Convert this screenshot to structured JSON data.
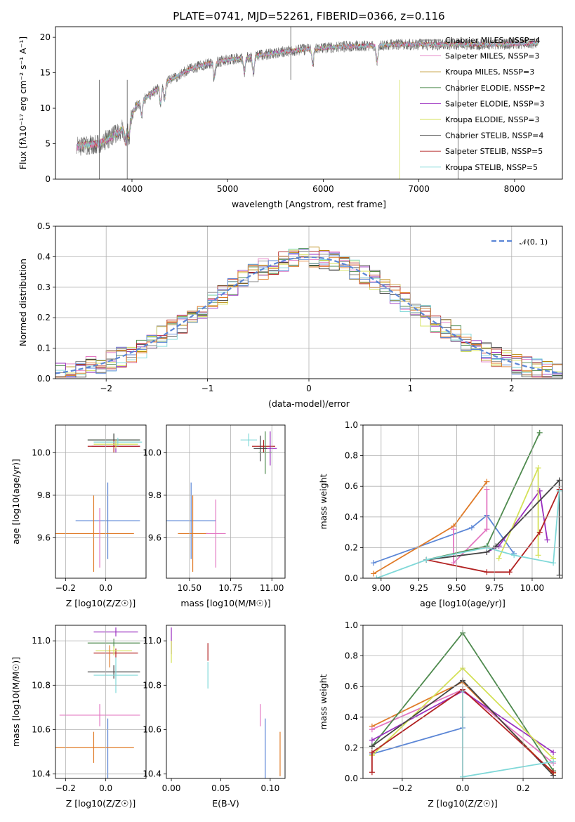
{
  "title": "PLATE=0741, MJD=52261, FIBERID=0366, z=0.116",
  "colors": {
    "chabrier_miles": "#808080",
    "salpeter_miles": "#e377c2",
    "kroupa_miles": "#b8860b",
    "chabrier_elodie": "#4e8a4e",
    "salpeter_elodie": "#9b30c0",
    "kroupa_elodie": "#d4e157",
    "chabrier_stelib": "#444444",
    "salpeter_stelib": "#b22222",
    "kroupa_stelib": "#7fd8d8",
    "blue": "#5b86d6",
    "orange": "#e07b28",
    "pink": "#e377c2",
    "grid": "#b0b0b0"
  },
  "chart_data": [
    {
      "type": "line",
      "panel": "spectrum",
      "xlabel": "wavelength [Angstrom, rest frame]",
      "ylabel": "Flux [f$_\\lambda$10$^{-17}$ erg cm$^{-2}$ s$^{-1}$ A$^{-1}$]",
      "ylabel_display": "Flux [fλ10⁻¹⁷ erg cm⁻² s⁻¹ A⁻¹]",
      "xlim": [
        3200,
        8500
      ],
      "ylim": [
        0,
        21.5
      ],
      "xticks": [
        "4000",
        "5000",
        "6000",
        "7000",
        "8000"
      ],
      "yticks": [
        "0",
        "5",
        "10",
        "15",
        "20"
      ],
      "legend_position": "right",
      "legend": [
        "Chabrier MILES, N_SSP=4",
        "Salpeter MILES, N_SSP=3",
        "Kroupa MILES, N_SSP=3",
        "Chabrier ELODIE, N_SSP=2",
        "Salpeter ELODIE, N_SSP=3",
        "Kroupa ELODIE, N_SSP=3",
        "Chabrier STELIB, N_SSP=4",
        "Salpeter STELIB, N_SSP=5",
        "Kroupa STELIB, N_SSP=5"
      ],
      "legend_display": [
        "Chabrier MILES, NSSP=4",
        "Salpeter MILES, NSSP=3",
        "Kroupa MILES, NSSP=3",
        "Chabrier ELODIE, NSSP=2",
        "Salpeter ELODIE, NSSP=3",
        "Kroupa ELODIE, NSSP=3",
        "Chabrier STELIB, NSSP=4",
        "Salpeter STELIB, NSSP=5",
        "Kroupa STELIB, NSSP=5"
      ],
      "continuum": {
        "x": [
          3420,
          3500,
          3650,
          3800,
          3950,
          4050,
          4200,
          4400,
          4600,
          4800,
          5000,
          5200,
          5400,
          5600,
          5800,
          6000,
          6200,
          6400,
          6600,
          6800,
          7000,
          7200,
          7500,
          7800,
          8000,
          8250
        ],
        "y": [
          4.5,
          4.8,
          5.0,
          6.0,
          7.5,
          10.5,
          12.0,
          14.0,
          15.5,
          16.3,
          16.8,
          17.2,
          17.6,
          18.0,
          18.3,
          18.5,
          18.7,
          18.8,
          18.9,
          19.0,
          19.0,
          19.0,
          19.0,
          19.0,
          19.1,
          19.2
        ]
      }
    },
    {
      "type": "line",
      "panel": "residual histogram",
      "xlabel": "(data-model)/error",
      "ylabel": "Normed distribution",
      "xlim": [
        -2.5,
        2.5
      ],
      "ylim": [
        0,
        0.5
      ],
      "xticks": [
        "−2",
        "−1",
        "0",
        "1",
        "2"
      ],
      "yticks": [
        "0.0",
        "0.1",
        "0.2",
        "0.3",
        "0.4",
        "0.5"
      ],
      "legend": [
        "𝒩(0, 1)"
      ],
      "legend_position": "top-right",
      "grid": true,
      "bin_width": 0.1,
      "reference": {
        "name": "𝒩(0, 1)",
        "mean": 0,
        "sigma": 1
      }
    },
    {
      "type": "scatter",
      "panel": "Z vs age",
      "xlabel": "Z [log10(Z/Z☉)]",
      "ylabel": "age [log10(age/yr)]",
      "xlim": [
        -0.25,
        0.2
      ],
      "ylim": [
        9.41,
        10.13
      ],
      "xticks": [
        "−0.2",
        "0.0"
      ],
      "yticks": [
        "9.6",
        "9.8",
        "10.0"
      ],
      "grid": true,
      "points": [
        {
          "x": 0.01,
          "y": 9.68,
          "xerr": 0.16,
          "yerr": 0.18,
          "color": "blue"
        },
        {
          "x": -0.06,
          "y": 9.62,
          "xerr": 0.2,
          "yerr": 0.18,
          "color": "orange"
        },
        {
          "x": -0.03,
          "y": 9.6,
          "xerr": 0.0,
          "yerr": 0.14,
          "color": "pink"
        },
        {
          "x": 0.04,
          "y": 10.06,
          "xerr": 0.13,
          "yerr": 0.03,
          "color": "chabrier_elodie"
        },
        {
          "x": 0.04,
          "y": 10.06,
          "xerr": 0.13,
          "yerr": 0.03,
          "color": "chabrier_stelib"
        },
        {
          "x": 0.05,
          "y": 10.03,
          "xerr": 0.12,
          "yerr": 0.03,
          "color": "salpeter_elodie"
        },
        {
          "x": 0.04,
          "y": 10.03,
          "xerr": 0.13,
          "yerr": 0.03,
          "color": "salpeter_stelib"
        },
        {
          "x": 0.06,
          "y": 10.05,
          "xerr": 0.12,
          "yerr": 0.02,
          "color": "kroupa_stelib"
        },
        {
          "x": 0.05,
          "y": 10.04,
          "xerr": 0.11,
          "yerr": 0.02,
          "color": "kroupa_elodie"
        }
      ]
    },
    {
      "type": "scatter",
      "panel": "mass vs age",
      "xlabel": "mass [log10(M/M☉)]",
      "ylabel": "",
      "xlim": [
        10.36,
        11.08
      ],
      "ylim": [
        9.41,
        10.13
      ],
      "xticks": [
        "10.50",
        "10.75",
        "11.00"
      ],
      "yticks": [
        "9.6",
        "9.8",
        "10.0"
      ],
      "grid": true,
      "points": [
        {
          "x": 10.51,
          "y": 9.68,
          "xerr": 0.15,
          "yerr": 0.18,
          "color": "blue"
        },
        {
          "x": 10.52,
          "y": 9.62,
          "xerr": 0.09,
          "yerr": 0.18,
          "color": "orange"
        },
        {
          "x": 10.66,
          "y": 9.62,
          "xerr": 0.06,
          "yerr": 0.16,
          "color": "pink"
        },
        {
          "x": 10.86,
          "y": 10.06,
          "xerr": 0.05,
          "yerr": 0.03,
          "color": "kroupa_stelib"
        },
        {
          "x": 10.95,
          "y": 10.03,
          "xerr": 0.07,
          "yerr": 0.03,
          "color": "salpeter_stelib"
        },
        {
          "x": 10.99,
          "y": 10.02,
          "xerr": 0.04,
          "yerr": 0.08,
          "color": "salpeter_elodie"
        },
        {
          "x": 10.96,
          "y": 10.0,
          "xerr": 0.04,
          "yerr": 0.1,
          "color": "chabrier_elodie"
        },
        {
          "x": 10.93,
          "y": 10.02,
          "xerr": 0.04,
          "yerr": 0.06,
          "color": "chabrier_stelib"
        }
      ]
    },
    {
      "type": "line",
      "panel": "age vs mass weight",
      "xlabel": "age [log10(age/yr)]",
      "ylabel": "mass weight",
      "xlim": [
        8.88,
        10.2
      ],
      "ylim": [
        0,
        1
      ],
      "xticks": [
        "9.00",
        "9.25",
        "9.50",
        "9.75",
        "10.00"
      ],
      "yticks": [
        "0.0",
        "0.2",
        "0.4",
        "0.6",
        "0.8",
        "1.0"
      ],
      "grid": true,
      "series": [
        {
          "color": "blue",
          "x": [
            8.95,
            9.6,
            9.7,
            9.88
          ],
          "y": [
            0.1,
            0.33,
            0.41,
            0.16
          ]
        },
        {
          "color": "orange",
          "x": [
            8.95,
            9.48,
            9.7
          ],
          "y": [
            0.03,
            0.34,
            0.63
          ]
        },
        {
          "color": "pink",
          "x": [
            9.48,
            9.48,
            9.7,
            9.7
          ],
          "y": [
            0.32,
            0.1,
            0.32,
            0.58
          ]
        },
        {
          "color": "chabrier_elodie",
          "x": [
            9.3,
            9.7,
            10.05
          ],
          "y": [
            0.12,
            0.21,
            0.95
          ]
        },
        {
          "color": "salpeter_elodie",
          "x": [
            9.7,
            9.78,
            10.05,
            10.1
          ],
          "y": [
            0.17,
            0.21,
            0.57,
            0.25
          ]
        },
        {
          "color": "kroupa_elodie",
          "x": [
            9.78,
            10.04,
            10.04
          ],
          "y": [
            0.13,
            0.72,
            0.15
          ]
        },
        {
          "color": "chabrier_stelib",
          "x": [
            9.3,
            9.7,
            9.76,
            10.18,
            10.18
          ],
          "y": [
            0.12,
            0.17,
            0.21,
            0.64,
            0.02
          ]
        },
        {
          "color": "salpeter_stelib",
          "x": [
            9.3,
            9.7,
            9.85,
            10.05,
            10.18
          ],
          "y": [
            0.12,
            0.04,
            0.04,
            0.3,
            0.58
          ]
        },
        {
          "color": "kroupa_stelib",
          "x": [
            8.97,
            9.3,
            9.7,
            9.88,
            10.14,
            10.18
          ],
          "y": [
            0.0,
            0.12,
            0.2,
            0.15,
            0.1,
            0.57
          ]
        }
      ]
    },
    {
      "type": "scatter",
      "panel": "Z vs mass",
      "xlabel": "Z [log10(Z/Z☉)]",
      "ylabel": "mass [log10(M/M☉)]",
      "xlim": [
        -0.25,
        0.2
      ],
      "ylim": [
        10.38,
        11.07
      ],
      "xticks": [
        "−0.2",
        "0.0"
      ],
      "yticks": [
        "10.4",
        "10.6",
        "10.8",
        "11.0"
      ],
      "grid": true,
      "points": [
        {
          "x": 0.01,
          "y": 10.51,
          "yerr": 0.14,
          "xerr": 0.0,
          "color": "blue"
        },
        {
          "x": -0.06,
          "y": 10.52,
          "xerr": 0.2,
          "yerr": 0.07,
          "color": "orange"
        },
        {
          "x": -0.03,
          "y": 10.665,
          "xerr": 0.2,
          "yerr": 0.05,
          "color": "pink"
        },
        {
          "x": 0.05,
          "y": 11.04,
          "xerr": 0.11,
          "yerr": 0.02,
          "color": "salpeter_elodie"
        },
        {
          "x": 0.04,
          "y": 10.99,
          "xerr": 0.13,
          "yerr": 0.02,
          "color": "chabrier_elodie"
        },
        {
          "x": 0.05,
          "y": 10.945,
          "xerr": 0.11,
          "yerr": 0.02,
          "color": "salpeter_stelib"
        },
        {
          "x": 0.04,
          "y": 10.955,
          "xerr": 0.09,
          "yerr": 0.02,
          "color": "kroupa_elodie"
        },
        {
          "x": 0.04,
          "y": 10.86,
          "xerr": 0.13,
          "yerr": 0.03,
          "color": "chabrier_stelib"
        },
        {
          "x": 0.05,
          "y": 10.845,
          "xerr": 0.11,
          "yerr": 0.08,
          "color": "kroupa_stelib"
        },
        {
          "x": 0.02,
          "y": 10.93,
          "xerr": 0.0,
          "yerr": 0.05,
          "color": "orange"
        }
      ]
    },
    {
      "type": "scatter",
      "panel": "E(B-V) vs mass",
      "xlabel": "E(B-V)",
      "ylabel": "",
      "xlim": [
        -0.005,
        0.115
      ],
      "ylim": [
        10.38,
        11.07
      ],
      "xticks": [
        "0.00",
        "0.05",
        "0.10"
      ],
      "yticks": [
        "10.4",
        "10.6",
        "10.8",
        "11.0"
      ],
      "grid": false,
      "points": [
        {
          "x": 0.0,
          "y": 11.0,
          "yerr": 0.06,
          "color": "salpeter_elodie"
        },
        {
          "x": 0.0,
          "y": 10.95,
          "yerr": 0.05,
          "color": "kroupa_elodie"
        },
        {
          "x": 0.037,
          "y": 10.95,
          "yerr": 0.04,
          "color": "salpeter_stelib"
        },
        {
          "x": 0.037,
          "y": 10.845,
          "yerr": 0.06,
          "color": "kroupa_stelib"
        },
        {
          "x": 0.09,
          "y": 10.665,
          "yerr": 0.05,
          "color": "pink"
        },
        {
          "x": 0.095,
          "y": 10.51,
          "yerr": 0.14,
          "color": "blue"
        },
        {
          "x": 0.11,
          "y": 10.49,
          "yerr": 0.1,
          "color": "orange"
        }
      ]
    },
    {
      "type": "line",
      "panel": "Z vs mass weight",
      "xlabel": "Z [log10(Z/Z☉)]",
      "ylabel": "mass weight",
      "xlim": [
        -0.33,
        0.33
      ],
      "ylim": [
        0,
        1
      ],
      "xticks": [
        "−0.2",
        "0.0",
        "0.2"
      ],
      "yticks": [
        "0.0",
        "0.2",
        "0.4",
        "0.6",
        "0.8",
        "1.0"
      ],
      "grid": true,
      "series": [
        {
          "color": "blue",
          "x": [
            -0.3,
            0.0,
            0.0
          ],
          "y": [
            0.16,
            0.33,
            0.4
          ]
        },
        {
          "color": "orange",
          "x": [
            -0.3,
            0.0,
            0.3
          ],
          "y": [
            0.34,
            0.63,
            0.03
          ]
        },
        {
          "color": "pink",
          "x": [
            -0.3,
            0.0,
            0.3
          ],
          "y": [
            0.32,
            0.58,
            0.1
          ]
        },
        {
          "color": "chabrier_elodie",
          "x": [
            -0.3,
            0.0,
            0.3
          ],
          "y": [
            0.21,
            0.95,
            0.05
          ]
        },
        {
          "color": "salpeter_elodie",
          "x": [
            -0.3,
            0.0,
            0.3
          ],
          "y": [
            0.25,
            0.57,
            0.17
          ]
        },
        {
          "color": "kroupa_elodie",
          "x": [
            -0.3,
            0.0,
            0.3
          ],
          "y": [
            0.15,
            0.72,
            0.13
          ]
        },
        {
          "color": "chabrier_stelib",
          "x": [
            -0.3,
            0.0,
            0.3
          ],
          "y": [
            0.21,
            0.64,
            0.02
          ]
        },
        {
          "color": "salpeter_stelib",
          "x": [
            -0.3,
            -0.3,
            0.0,
            0.3
          ],
          "y": [
            0.04,
            0.17,
            0.58,
            0.04
          ]
        },
        {
          "color": "kroupa_stelib",
          "x": [
            0.0,
            0.0,
            0.3
          ],
          "y": [
            0.57,
            0.01,
            0.11
          ]
        }
      ]
    }
  ]
}
